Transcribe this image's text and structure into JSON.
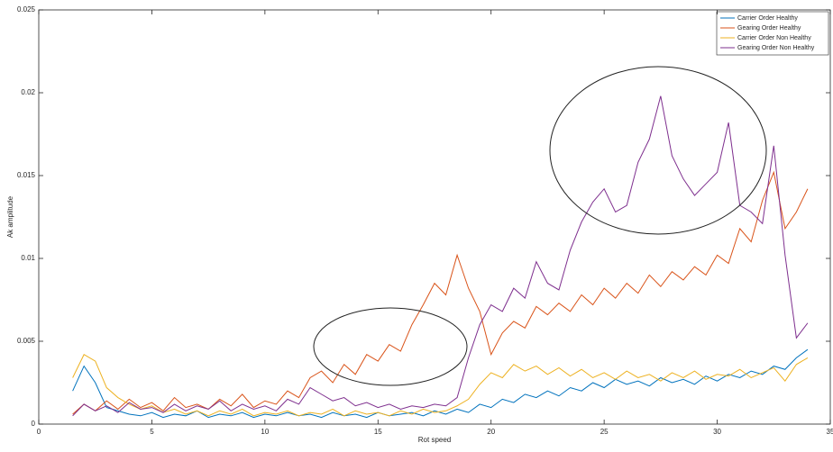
{
  "chart_data": {
    "type": "line",
    "xlabel": "Rot speed",
    "ylabel": "Ak amplitude",
    "xlim": [
      0,
      35
    ],
    "xticks": [
      0,
      5,
      10,
      15,
      20,
      25,
      30,
      35
    ],
    "ylim": [
      0,
      0.025
    ],
    "yticks": [
      0,
      0.005,
      0.01,
      0.015,
      0.02,
      0.025
    ],
    "legend": "upper right",
    "x": [
      1.5,
      2,
      2.5,
      3,
      3.5,
      4,
      4.5,
      5,
      5.5,
      6,
      6.5,
      7,
      7.5,
      8,
      8.5,
      9,
      9.5,
      10,
      10.5,
      11,
      11.5,
      12,
      12.5,
      13,
      13.5,
      14,
      14.5,
      15,
      15.5,
      16,
      16.5,
      17,
      17.5,
      18,
      18.5,
      19,
      19.5,
      20,
      20.5,
      21,
      21.5,
      22,
      22.5,
      23,
      23.5,
      24,
      24.5,
      25,
      25.5,
      26,
      26.5,
      27,
      27.5,
      28,
      28.5,
      29,
      29.5,
      30,
      30.5,
      31,
      31.5,
      32,
      32.5,
      33,
      33.5,
      34
    ],
    "series": [
      {
        "name": "Carrier Order Healthy",
        "color": "#0072bd",
        "values": [
          0.002,
          0.0035,
          0.0025,
          0.001,
          0.0008,
          0.0006,
          0.0005,
          0.0007,
          0.0004,
          0.0006,
          0.0005,
          0.0008,
          0.0004,
          0.0006,
          0.0005,
          0.0007,
          0.0004,
          0.0006,
          0.0005,
          0.0007,
          0.0005,
          0.0006,
          0.0004,
          0.0007,
          0.0005,
          0.0006,
          0.0004,
          0.0007,
          0.0005,
          0.0006,
          0.0007,
          0.0005,
          0.0008,
          0.0006,
          0.0009,
          0.0007,
          0.0012,
          0.001,
          0.0015,
          0.0013,
          0.0018,
          0.0016,
          0.002,
          0.0017,
          0.0022,
          0.002,
          0.0025,
          0.0022,
          0.0027,
          0.0024,
          0.0026,
          0.0023,
          0.0028,
          0.0025,
          0.0027,
          0.0024,
          0.0029,
          0.0026,
          0.003,
          0.0028,
          0.0032,
          0.003,
          0.0035,
          0.0033,
          0.004,
          0.0045
        ]
      },
      {
        "name": "Gearing Order Healthy",
        "color": "#d95319",
        "values": [
          0.0006,
          0.0012,
          0.0008,
          0.0014,
          0.0009,
          0.0015,
          0.001,
          0.0013,
          0.0008,
          0.0016,
          0.001,
          0.0012,
          0.0009,
          0.0015,
          0.0011,
          0.0018,
          0.001,
          0.0014,
          0.0012,
          0.002,
          0.0016,
          0.0028,
          0.0032,
          0.0025,
          0.0036,
          0.003,
          0.0042,
          0.0038,
          0.0048,
          0.0044,
          0.006,
          0.0072,
          0.0085,
          0.0078,
          0.0102,
          0.0082,
          0.0068,
          0.0042,
          0.0055,
          0.0062,
          0.0058,
          0.0071,
          0.0066,
          0.0073,
          0.0068,
          0.0078,
          0.0072,
          0.0082,
          0.0076,
          0.0085,
          0.0079,
          0.009,
          0.0083,
          0.0092,
          0.0087,
          0.0095,
          0.009,
          0.0102,
          0.0097,
          0.0118,
          0.011,
          0.0135,
          0.0152,
          0.0118,
          0.0128,
          0.0142
        ]
      },
      {
        "name": "Carrier Order Non Healthy",
        "color": "#edb120",
        "values": [
          0.0028,
          0.0042,
          0.0038,
          0.0022,
          0.0016,
          0.0012,
          0.0009,
          0.0011,
          0.0007,
          0.0009,
          0.0006,
          0.0008,
          0.0005,
          0.0008,
          0.0006,
          0.0009,
          0.0005,
          0.0007,
          0.0006,
          0.0008,
          0.0005,
          0.0007,
          0.0006,
          0.0009,
          0.0005,
          0.0008,
          0.0006,
          0.0007,
          0.0005,
          0.0008,
          0.0006,
          0.0009,
          0.0007,
          0.0008,
          0.0011,
          0.0015,
          0.0024,
          0.0031,
          0.0028,
          0.0036,
          0.0032,
          0.0035,
          0.003,
          0.0034,
          0.0029,
          0.0033,
          0.0028,
          0.0031,
          0.0027,
          0.0032,
          0.0028,
          0.003,
          0.0026,
          0.0031,
          0.0028,
          0.0032,
          0.0027,
          0.003,
          0.0029,
          0.0033,
          0.0028,
          0.0031,
          0.0034,
          0.0026,
          0.0036,
          0.004
        ]
      },
      {
        "name": "Gearing Order Non Healthy",
        "color": "#7e2f8e",
        "values": [
          0.0005,
          0.0012,
          0.0008,
          0.0011,
          0.0007,
          0.0013,
          0.0009,
          0.001,
          0.0007,
          0.0012,
          0.0008,
          0.0011,
          0.0009,
          0.0014,
          0.0008,
          0.0012,
          0.0009,
          0.0011,
          0.0008,
          0.0015,
          0.0012,
          0.0022,
          0.0018,
          0.0014,
          0.0016,
          0.0011,
          0.0013,
          0.001,
          0.0012,
          0.0009,
          0.0011,
          0.001,
          0.0012,
          0.0011,
          0.0016,
          0.004,
          0.006,
          0.0072,
          0.0068,
          0.0082,
          0.0076,
          0.0098,
          0.0085,
          0.0081,
          0.0105,
          0.0122,
          0.0134,
          0.0142,
          0.0128,
          0.0132,
          0.0158,
          0.0172,
          0.0198,
          0.0162,
          0.0148,
          0.0138,
          0.0145,
          0.0152,
          0.0182,
          0.0132,
          0.0128,
          0.0121,
          0.0168,
          0.0102,
          0.0052,
          0.0061
        ]
      }
    ]
  }
}
